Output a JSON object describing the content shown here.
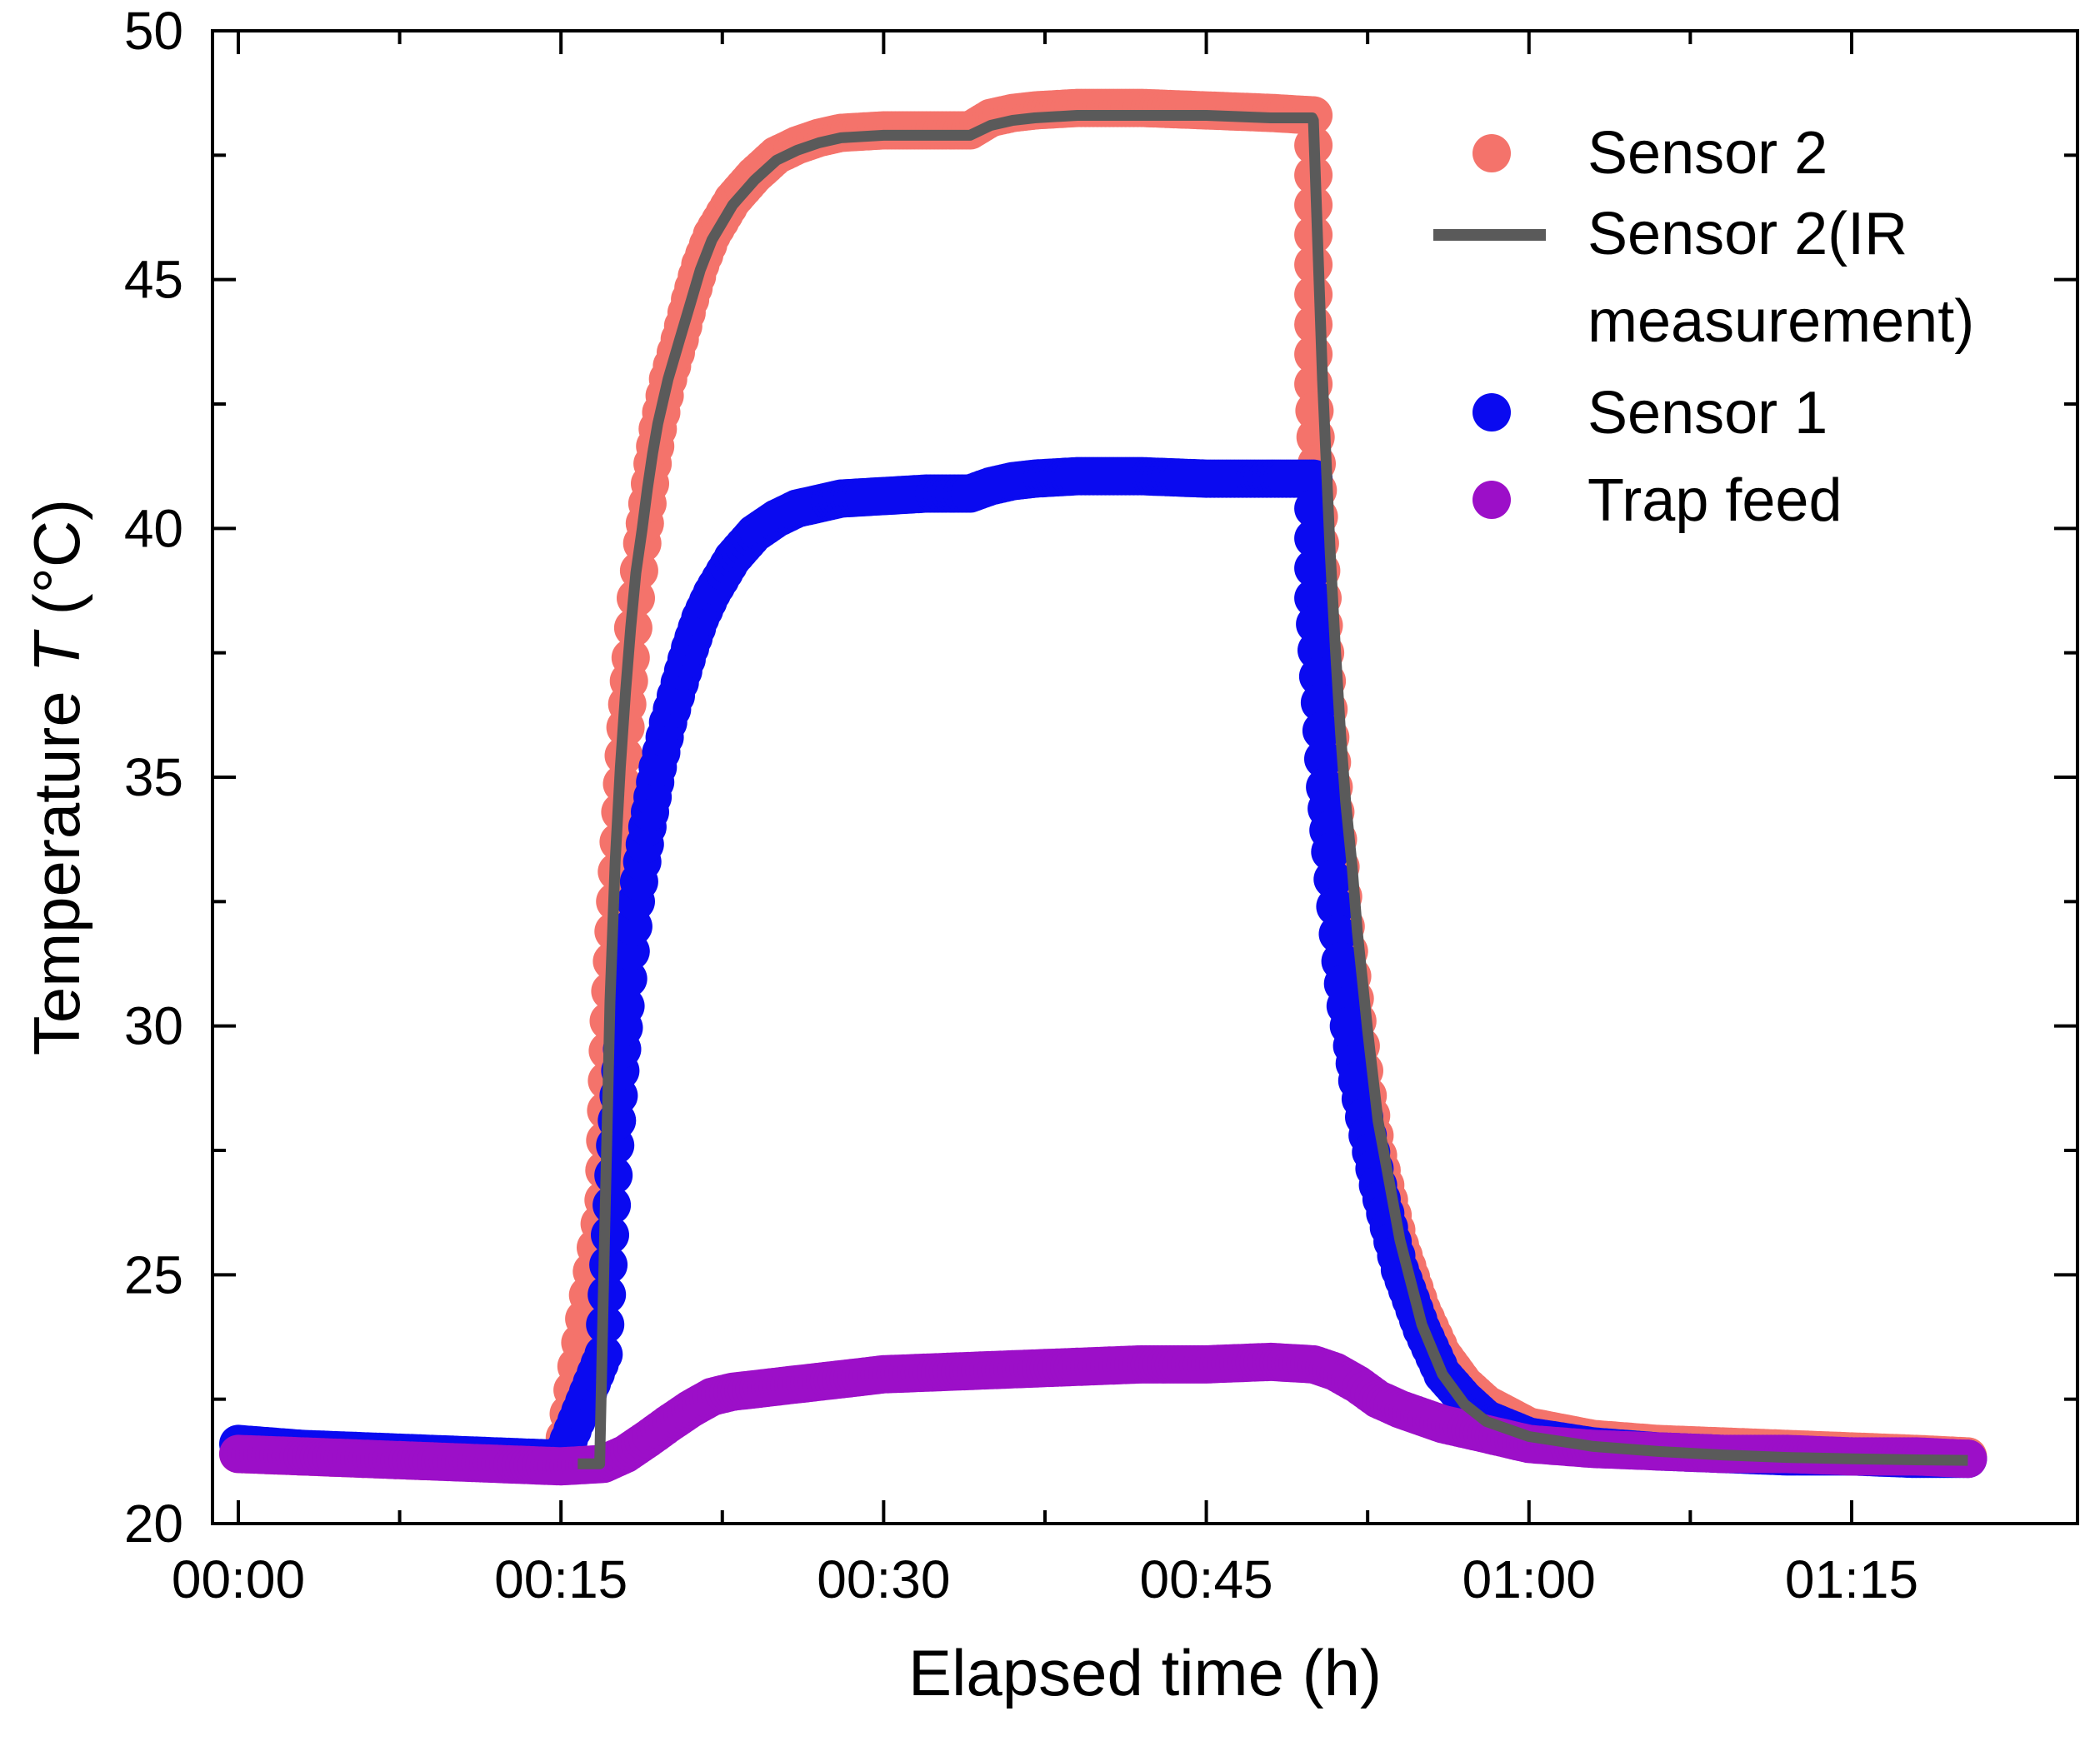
{
  "chart_data": {
    "type": "scatter",
    "title": "",
    "xlabel": "Elapsed time (h)",
    "ylabel_prefix": "Temperature ",
    "ylabel_symbol": "T",
    "ylabel_suffix": " (°C)",
    "xlim": [
      -0.02,
      1.425
    ],
    "ylim": [
      20,
      50
    ],
    "x_unit": "hours",
    "x_ticks": [
      {
        "value": 0,
        "label": "00:00"
      },
      {
        "value": 0.25,
        "label": "00:15"
      },
      {
        "value": 0.5,
        "label": "00:30"
      },
      {
        "value": 0.75,
        "label": "00:45"
      },
      {
        "value": 1.0,
        "label": "01:00"
      },
      {
        "value": 1.25,
        "label": "01:15"
      }
    ],
    "y_ticks": [
      {
        "value": 20,
        "label": "20"
      },
      {
        "value": 25,
        "label": "25"
      },
      {
        "value": 30,
        "label": "30"
      },
      {
        "value": 35,
        "label": "35"
      },
      {
        "value": 40,
        "label": "40"
      },
      {
        "value": 45,
        "label": "45"
      },
      {
        "value": 50,
        "label": "50"
      }
    ],
    "grid": false,
    "legend_position": "top-right",
    "series": [
      {
        "name": "Sensor 2",
        "kind": "markers",
        "color": "#f4736b",
        "x": [
          0.0,
          0.05,
          0.1,
          0.15,
          0.2,
          0.25,
          0.283,
          0.287,
          0.292,
          0.296,
          0.3,
          0.304,
          0.308,
          0.313,
          0.317,
          0.321,
          0.325,
          0.333,
          0.342,
          0.35,
          0.358,
          0.367,
          0.383,
          0.4,
          0.417,
          0.433,
          0.45,
          0.467,
          0.5,
          0.533,
          0.567,
          0.583,
          0.6,
          0.617,
          0.65,
          0.7,
          0.75,
          0.8,
          0.833,
          0.833,
          0.838,
          0.842,
          0.846,
          0.85,
          0.854,
          0.858,
          0.863,
          0.867,
          0.875,
          0.883,
          0.9,
          0.917,
          0.933,
          0.95,
          0.967,
          1.0,
          1.05,
          1.1,
          1.15,
          1.2,
          1.25,
          1.3,
          1.34
        ],
        "y": [
          21.4,
          21.35,
          21.3,
          21.25,
          21.25,
          21.25,
          26.5,
          30.1,
          32.5,
          34.3,
          36.0,
          37.4,
          38.6,
          39.7,
          40.5,
          41.3,
          42.0,
          43.0,
          43.8,
          44.6,
          45.3,
          45.9,
          46.6,
          47.1,
          47.5,
          47.7,
          47.85,
          47.95,
          48.0,
          48.0,
          48.0,
          48.25,
          48.35,
          48.4,
          48.45,
          48.45,
          48.4,
          48.35,
          48.3,
          42.9,
          39.7,
          37.5,
          35.8,
          34.3,
          33.2,
          32.0,
          31.0,
          30.1,
          28.6,
          27.4,
          25.6,
          24.3,
          23.4,
          22.8,
          22.4,
          21.95,
          21.7,
          21.6,
          21.55,
          21.5,
          21.45,
          21.4,
          21.35
        ]
      },
      {
        "name": "Sensor 2(IR measurement)",
        "kind": "line",
        "color": "#5a5a5a",
        "x": [
          0.263,
          0.28,
          0.284,
          0.288,
          0.292,
          0.296,
          0.3,
          0.304,
          0.308,
          0.313,
          0.317,
          0.321,
          0.325,
          0.333,
          0.342,
          0.35,
          0.358,
          0.367,
          0.383,
          0.4,
          0.417,
          0.433,
          0.45,
          0.467,
          0.5,
          0.533,
          0.567,
          0.583,
          0.6,
          0.617,
          0.65,
          0.7,
          0.75,
          0.8,
          0.832,
          0.833,
          0.84,
          0.846,
          0.85,
          0.854,
          0.858,
          0.863,
          0.867,
          0.875,
          0.883,
          0.9,
          0.917,
          0.933,
          0.95,
          0.967,
          1.0,
          1.05,
          1.1,
          1.15,
          1.2,
          1.25,
          1.3,
          1.34
        ],
        "y": [
          21.2,
          21.2,
          26.0,
          30.5,
          33.3,
          35.2,
          36.7,
          38.0,
          39.1,
          40.0,
          40.8,
          41.5,
          42.1,
          43.0,
          43.8,
          44.5,
          45.2,
          45.8,
          46.5,
          47.0,
          47.4,
          47.6,
          47.75,
          47.85,
          47.9,
          47.9,
          47.9,
          48.1,
          48.2,
          48.25,
          48.3,
          48.3,
          48.3,
          48.25,
          48.25,
          48.2,
          43.0,
          39.5,
          37.6,
          35.9,
          34.5,
          33.2,
          31.9,
          29.9,
          28.1,
          25.7,
          24.0,
          23.0,
          22.4,
          22.05,
          21.75,
          21.55,
          21.45,
          21.38,
          21.33,
          21.3,
          21.28,
          21.27
        ]
      },
      {
        "name": "Sensor 1",
        "kind": "markers",
        "color": "#0a0af0",
        "x": [
          0.0,
          0.05,
          0.1,
          0.15,
          0.2,
          0.25,
          0.283,
          0.288,
          0.292,
          0.296,
          0.3,
          0.304,
          0.308,
          0.313,
          0.317,
          0.321,
          0.325,
          0.333,
          0.342,
          0.35,
          0.358,
          0.367,
          0.383,
          0.4,
          0.417,
          0.433,
          0.45,
          0.467,
          0.5,
          0.533,
          0.567,
          0.583,
          0.6,
          0.617,
          0.65,
          0.7,
          0.75,
          0.8,
          0.833,
          0.833,
          0.838,
          0.842,
          0.846,
          0.85,
          0.854,
          0.858,
          0.863,
          0.867,
          0.875,
          0.883,
          0.9,
          0.917,
          0.933,
          0.95,
          0.967,
          1.0,
          1.05,
          1.1,
          1.15,
          1.2,
          1.25,
          1.3,
          1.34
        ],
        "y": [
          21.6,
          21.5,
          21.45,
          21.4,
          21.35,
          21.3,
          23.4,
          25.8,
          27.6,
          29.1,
          30.4,
          31.5,
          32.5,
          33.3,
          34.0,
          34.6,
          35.2,
          36.1,
          36.9,
          37.6,
          38.2,
          38.7,
          39.4,
          39.9,
          40.2,
          40.4,
          40.5,
          40.6,
          40.65,
          40.7,
          40.7,
          40.85,
          40.95,
          41.0,
          41.05,
          41.05,
          41.0,
          41.0,
          41.0,
          38.6,
          36.5,
          34.8,
          33.5,
          32.4,
          31.3,
          30.4,
          29.6,
          28.9,
          27.8,
          26.8,
          25.1,
          23.9,
          23.0,
          22.5,
          22.1,
          21.75,
          21.55,
          21.45,
          21.4,
          21.35,
          21.35,
          21.3,
          21.3
        ]
      },
      {
        "name": "Trap feed",
        "kind": "markers",
        "color": "#9c0fc8",
        "x": [
          0.0,
          0.05,
          0.1,
          0.15,
          0.2,
          0.25,
          0.283,
          0.3,
          0.317,
          0.333,
          0.35,
          0.367,
          0.383,
          0.4,
          0.433,
          0.467,
          0.5,
          0.55,
          0.6,
          0.65,
          0.7,
          0.75,
          0.8,
          0.833,
          0.85,
          0.867,
          0.883,
          0.9,
          0.933,
          0.967,
          1.0,
          1.05,
          1.1,
          1.15,
          1.2,
          1.25,
          1.3,
          1.34
        ],
        "y": [
          21.4,
          21.35,
          21.3,
          21.25,
          21.2,
          21.15,
          21.2,
          21.4,
          21.7,
          22.0,
          22.3,
          22.55,
          22.65,
          22.7,
          22.8,
          22.9,
          23.0,
          23.05,
          23.1,
          23.15,
          23.2,
          23.2,
          23.25,
          23.2,
          23.05,
          22.8,
          22.5,
          22.3,
          22.0,
          21.8,
          21.6,
          21.5,
          21.45,
          21.4,
          21.4,
          21.35,
          21.35,
          21.3
        ]
      }
    ]
  },
  "legend": {
    "entries": [
      {
        "label_line1": "Sensor 2",
        "label_line2": "",
        "kind": "marker",
        "color": "#f4736b"
      },
      {
        "label_line1": "Sensor 2(IR",
        "label_line2": "measurement)",
        "kind": "line",
        "color": "#5a5a5a"
      },
      {
        "label_line1": "Sensor 1",
        "label_line2": "",
        "kind": "marker",
        "color": "#0a0af0"
      },
      {
        "label_line1": "Trap feed",
        "label_line2": "",
        "kind": "marker",
        "color": "#9c0fc8"
      }
    ]
  }
}
